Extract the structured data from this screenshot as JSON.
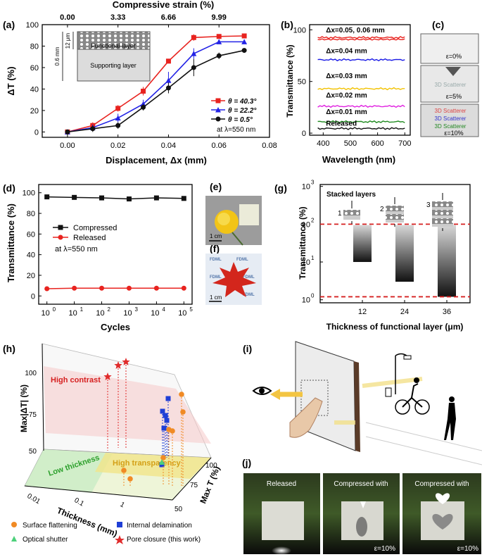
{
  "panel_labels": {
    "a": "(a)",
    "b": "(b)",
    "c": "(c)",
    "d": "(d)",
    "e": "(e)",
    "f": "(f)",
    "g": "(g)",
    "h": "(h)",
    "i": "(i)",
    "j": "(j)"
  },
  "chart_data": [
    {
      "id": "a",
      "type": "line",
      "title": "",
      "xlabel": "Displacement, Δx (mm)",
      "ylabel": "ΔT (%)",
      "top_axis_label": "Compressive strain (%)",
      "top_ticks": [
        "0.00",
        "3.33",
        "6.66",
        "9.99"
      ],
      "top_tick_x": [
        0.0,
        0.02,
        0.04,
        0.06
      ],
      "xlim": [
        -0.01,
        0.08
      ],
      "ylim": [
        -5,
        100
      ],
      "xticks": [
        "0.00",
        "0.02",
        "0.04",
        "0.06",
        "0.08"
      ],
      "xtick_values": [
        0,
        0.02,
        0.04,
        0.06,
        0.08
      ],
      "yticks": [
        "0",
        "20",
        "40",
        "60",
        "80",
        "100"
      ],
      "ytick_values": [
        0,
        20,
        40,
        60,
        80,
        100
      ],
      "x": [
        0,
        0.01,
        0.02,
        0.03,
        0.04,
        0.05,
        0.06,
        0.07
      ],
      "series": [
        {
          "name": "θ = 40.3°",
          "color": "#e8231f",
          "marker": "square",
          "values": [
            0,
            6,
            22,
            38,
            66,
            88,
            89,
            89.5
          ],
          "err": [
            2,
            3,
            3,
            4,
            2,
            3,
            1,
            1
          ]
        },
        {
          "name": "θ = 22.2°",
          "color": "#2323e6",
          "marker": "triangle",
          "values": [
            0,
            4,
            13,
            26,
            48,
            73,
            84,
            84
          ],
          "err": [
            2,
            3,
            4,
            4,
            8,
            5,
            2,
            1
          ]
        },
        {
          "name": "θ = 0.5°",
          "color": "#111111",
          "marker": "circle",
          "values": [
            0,
            3,
            6,
            23,
            41,
            60,
            71,
            76
          ],
          "err": [
            2,
            3,
            3,
            3,
            5,
            8,
            3,
            2
          ]
        }
      ],
      "legend_note": "at λ=550 nm",
      "inset": {
        "thickness_label": "0.6 mm",
        "layer_label": "12 μm",
        "functional": "Functional layer",
        "supporting": "Supporting layer"
      }
    },
    {
      "id": "b",
      "type": "line",
      "xlabel": "Wavelength (nm)",
      "ylabel": "Transmittance (%)",
      "xlim": [
        350,
        720
      ],
      "ylim": [
        -2,
        105
      ],
      "xticks": [
        "400",
        "500",
        "600",
        "700"
      ],
      "xtick_values": [
        400,
        500,
        600,
        700
      ],
      "yticks": [
        "0",
        "50",
        "100"
      ],
      "ytick_values": [
        0,
        50,
        100
      ],
      "series": [
        {
          "name": "Δx=0.05, 0.06 mm",
          "color": "#e8231f",
          "level": 92.5,
          "label_y": 96
        },
        {
          "name": "Δx=0.04 mm",
          "color": "#1a1ae6",
          "level": 71,
          "label_y": 76
        },
        {
          "name": "Δx=0.03 mm",
          "color": "#f2c200",
          "level": 43,
          "label_y": 52
        },
        {
          "name": "Δx=0.02 mm",
          "color": "#e020e0",
          "level": 26,
          "label_y": 33
        },
        {
          "name": "Δx=0.01 mm",
          "color": "#1f8a1f",
          "level": 11,
          "label_y": 17
        },
        {
          "name": "Released",
          "color": "#111111",
          "level": 4.5,
          "label_y": 6
        }
      ]
    },
    {
      "id": "d",
      "type": "line",
      "xlabel": "Cycles",
      "ylabel": "Transmittance (%)",
      "xscale": "log",
      "xlim_exp": [
        -0.3,
        5.3
      ],
      "ylim": [
        -8,
        108
      ],
      "xticks": [
        "0",
        "1",
        "2",
        "3",
        "4",
        "5"
      ],
      "xtick_exponents": [
        0,
        1,
        2,
        3,
        4,
        5
      ],
      "yticks": [
        "0",
        "20",
        "40",
        "60",
        "80",
        "100"
      ],
      "ytick_values": [
        0,
        20,
        40,
        60,
        80,
        100
      ],
      "series": [
        {
          "name": "Compressed",
          "color": "#111111",
          "marker": "square",
          "values": [
            96,
            95.5,
            95,
            94,
            95,
            94.5
          ]
        },
        {
          "name": "Released",
          "color": "#e8231f",
          "marker": "circle",
          "values": [
            7,
            7.5,
            7.5,
            7.5,
            7.5,
            7.5
          ]
        }
      ],
      "legend_note": "at λ=550 nm"
    },
    {
      "id": "g",
      "type": "bar",
      "xlabel": "Thickness of functional layer (μm)",
      "ylabel": "Transmittance (%)",
      "yscale": "log",
      "ylim_exp": [
        -0.08,
        3.05
      ],
      "categories": [
        "12",
        "24",
        "36"
      ],
      "bar_ranges": [
        [
          10,
          95
        ],
        [
          3,
          95
        ],
        [
          1.2,
          95
        ]
      ],
      "reference_lines": [
        100,
        1.2
      ],
      "yticks": [
        "10",
        "10",
        "10",
        "10"
      ],
      "ytick_exponents": [
        "0",
        "1",
        "2",
        "3"
      ],
      "annotation": "Stacked layers",
      "stack_labels": [
        "1",
        "2",
        "3"
      ]
    },
    {
      "id": "h",
      "type": "scatter",
      "xlabel": "Thickness (mm)",
      "ylabel": "Max|ΔT| (%)",
      "zlabel": "Max T (%)",
      "zticks": [
        "50",
        "75",
        "100"
      ],
      "yticks": [
        "50",
        "75",
        "100"
      ],
      "xticks": [
        "0.01",
        "0.1",
        "1"
      ],
      "regions": [
        "High contrast",
        "Low thickness",
        "High transparency"
      ],
      "legend": [
        "Surface flattening",
        "Internal delamination",
        "Optical shutter",
        "Pore closure (this work)"
      ]
    }
  ],
  "photos": {
    "c": {
      "labels": [
        "ε=0%",
        "ε=5%",
        "ε=10%"
      ],
      "scatter_text": "3D Scatterer"
    },
    "e": {
      "scale": "1 cm"
    },
    "f": {
      "scale": "1 cm",
      "watermark": "FDML"
    },
    "j": {
      "labels": [
        "Released",
        "Compressed with",
        "Compressed with"
      ],
      "strain": [
        "ε=10%",
        "ε=10%"
      ]
    }
  }
}
